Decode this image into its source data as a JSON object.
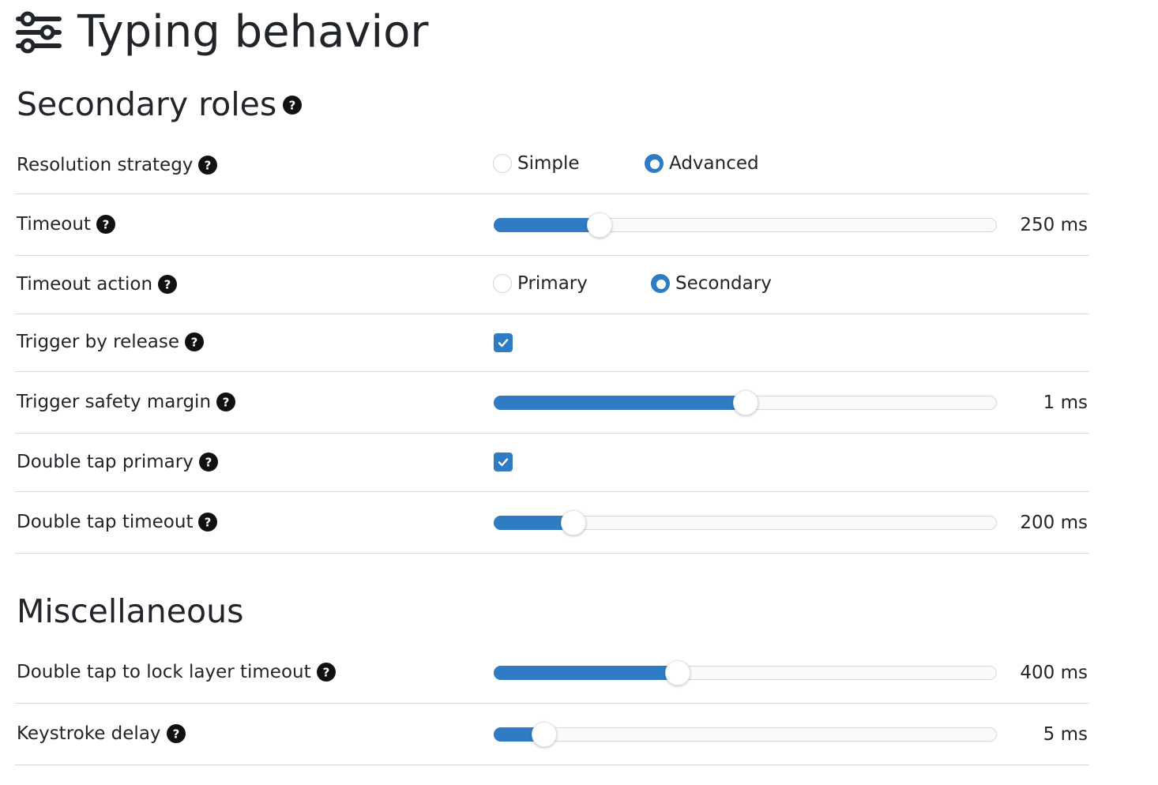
{
  "header": {
    "title": "Typing behavior",
    "icon": "sliders-icon"
  },
  "sections": {
    "secondary_roles": {
      "title": "Secondary roles",
      "help_icon": "question-circle-icon"
    },
    "miscellaneous": {
      "title": "Miscellaneous"
    }
  },
  "settings": {
    "resolution_strategy": {
      "label": "Resolution strategy",
      "options": [
        "Simple",
        "Advanced"
      ],
      "selected": "Advanced"
    },
    "timeout": {
      "label": "Timeout",
      "value": "250 ms",
      "fraction": 0.21
    },
    "timeout_action": {
      "label": "Timeout action",
      "options": [
        "Primary",
        "Secondary"
      ],
      "selected": "Secondary"
    },
    "trigger_by_release": {
      "label": "Trigger by release",
      "checked": true
    },
    "trigger_safety_margin": {
      "label": "Trigger safety margin",
      "value": "1 ms",
      "fraction": 0.5
    },
    "double_tap_primary": {
      "label": "Double tap primary",
      "checked": true
    },
    "double_tap_timeout": {
      "label": "Double tap timeout",
      "value": "200 ms",
      "fraction": 0.158
    },
    "double_tap_lock_layer_timeout": {
      "label": "Double tap to lock layer timeout",
      "value": "400 ms",
      "fraction": 0.366
    },
    "keystroke_delay": {
      "label": "Keystroke delay",
      "value": "5 ms",
      "fraction": 0.1
    }
  },
  "colors": {
    "accent": "#2f7cc4",
    "text": "#212529",
    "divider": "#d6d8db"
  }
}
